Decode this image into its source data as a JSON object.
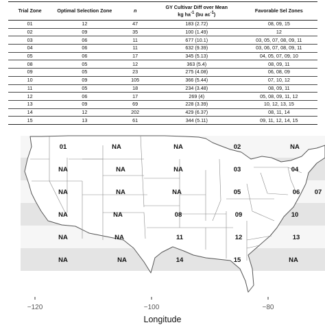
{
  "table": {
    "headers": {
      "trial_zone": "Trial Zone",
      "optimal_zone": "Optimal Selection Zone",
      "n": "n",
      "gy_line1": "GY Cultivar Diff over Mean",
      "gy_line2_a": "kg ha",
      "gy_line2_sup1": "-1",
      "gy_line2_b": " (bu ac",
      "gy_line2_sup2": "-1",
      "gy_line2_c": ")",
      "favorable": "Favorable Sel Zones"
    },
    "rows": [
      {
        "trial_zone": "01",
        "optimal_zone": "12",
        "n": "47",
        "gy_diff": "183 (2.72)",
        "favorable": "08, 09, 15"
      },
      {
        "trial_zone": "02",
        "optimal_zone": "09",
        "n": "35",
        "gy_diff": "100 (1.49)",
        "favorable": "12"
      },
      {
        "trial_zone": "03",
        "optimal_zone": "06",
        "n": "11",
        "gy_diff": "677 (10.1)",
        "favorable": "03, 05, 07, 08, 09, 11"
      },
      {
        "trial_zone": "04",
        "optimal_zone": "06",
        "n": "11",
        "gy_diff": "632 (9.39)",
        "favorable": "03, 06, 07, 08, 09, 11"
      },
      {
        "trial_zone": "05",
        "optimal_zone": "06",
        "n": "17",
        "gy_diff": "345 (5.13)",
        "favorable": "04, 05, 07, 09, 10"
      },
      {
        "trial_zone": "08",
        "optimal_zone": "05",
        "n": "12",
        "gy_diff": "363 (5.4)",
        "favorable": "08, 09, 11"
      },
      {
        "trial_zone": "09",
        "optimal_zone": "05",
        "n": "23",
        "gy_diff": "275 (4.08)",
        "favorable": "06, 08, 09"
      },
      {
        "trial_zone": "10",
        "optimal_zone": "09",
        "n": "105",
        "gy_diff": "366 (5.44)",
        "favorable": "07, 10, 12"
      },
      {
        "trial_zone": "11",
        "optimal_zone": "05",
        "n": "18",
        "gy_diff": "234 (3.48)",
        "favorable": "08, 09, 11"
      },
      {
        "trial_zone": "12",
        "optimal_zone": "06",
        "n": "17",
        "gy_diff": "269 (4)",
        "favorable": "05, 08, 09, 11, 12"
      },
      {
        "trial_zone": "13",
        "optimal_zone": "09",
        "n": "69",
        "gy_diff": "228 (3.39)",
        "favorable": "10, 12, 13, 15"
      },
      {
        "trial_zone": "14",
        "optimal_zone": "12",
        "n": "202",
        "gy_diff": "429 (6.37)",
        "favorable": "08, 11, 14"
      },
      {
        "trial_zone": "15",
        "optimal_zone": "13",
        "n": "61",
        "gy_diff": "344 (5.11)",
        "favorable": "09, 11, 12, 14, 15"
      }
    ]
  },
  "map": {
    "xlabel": "Longitude",
    "x_ticks": [
      {
        "value": -120,
        "label": "−120"
      },
      {
        "value": -100,
        "label": "−100"
      },
      {
        "value": -80,
        "label": "−80"
      }
    ],
    "colors": {
      "zone_light": "#f6f6f6",
      "zone_dark": "#e4e4e4",
      "land": "#ffffff",
      "outline": "#555555",
      "state_line": "#888888",
      "label": "#111111"
    },
    "zone_labels": {
      "r1": [
        "01",
        "NA",
        "NA",
        "02",
        "NA"
      ],
      "r2": [
        "NA",
        "NA",
        "NA",
        "03",
        "04"
      ],
      "r3": [
        "NA",
        "NA",
        "NA",
        "05",
        "06",
        "07"
      ],
      "r4": [
        "NA",
        "NA",
        "08",
        "09",
        "10"
      ],
      "r5": [
        "NA",
        "NA",
        "11",
        "12",
        "13"
      ],
      "r6": [
        "NA",
        "NA",
        "14",
        "15",
        "NA"
      ]
    }
  }
}
